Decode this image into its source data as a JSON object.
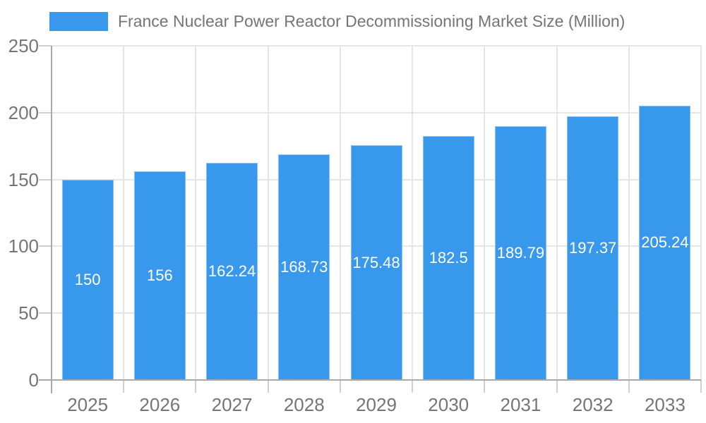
{
  "chart_data": {
    "type": "bar",
    "title": "France Nuclear Power Reactor Decommissioning Market Size (Million)",
    "categories": [
      "2025",
      "2026",
      "2027",
      "2028",
      "2029",
      "2030",
      "2031",
      "2032",
      "2033"
    ],
    "values": [
      150,
      156,
      162.24,
      168.73,
      175.48,
      182.5,
      189.79,
      197.37,
      205.24
    ],
    "value_labels": [
      "150",
      "156",
      "162.24",
      "168.73",
      "175.48",
      "182.5",
      "189.79",
      "197.37",
      "205.24"
    ],
    "xlabel": "",
    "ylabel": "",
    "ylim": [
      0,
      250
    ],
    "yticks": [
      0,
      50,
      100,
      150,
      200,
      250
    ],
    "grid": "on",
    "legend_position": "top-left",
    "colors": {
      "bar_fill": "#3898ec",
      "bar_edge": "#8ac0f3",
      "value_label_text": "#ffffff",
      "axis_text": "#757575",
      "gridline": "#e5e5e5",
      "tick": "#cfcfcf",
      "axis_line": "#a9a9a9",
      "background": "#ffffff"
    }
  }
}
